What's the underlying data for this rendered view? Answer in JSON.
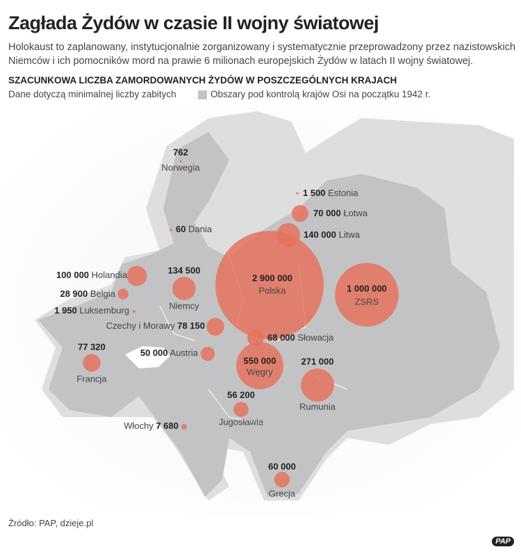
{
  "header": {
    "title": "Zagłada Żydów w czasie II wojny światowej",
    "subtitle": "Holokaust to zaplanowany, instytucjonalnie zorganizowany i systematycznie przeprowadzony przez nazistowskich Niemców i ich pomocników mord na prawie 6 milionach europejskich Żydów w latach II wojny światowej."
  },
  "legend": {
    "heading": "SZACUNKOWA LICZBA ZAMORDOWANYCH ŻYDÓW W POSZCZEGÓLNYCH KRAJACH",
    "note": "Dane dotyczą minimalnej liczby zabitych",
    "area_label": "Obszary pod kontrolą krajów Osi na początku 1942 r."
  },
  "countries": [
    {
      "name": "Norwegia",
      "deaths": 762,
      "deaths_label": "762"
    },
    {
      "name": "Estonia",
      "deaths": 1500,
      "deaths_label": "1 500"
    },
    {
      "name": "Łotwa",
      "deaths": 70000,
      "deaths_label": "70 000"
    },
    {
      "name": "Litwa",
      "deaths": 140000,
      "deaths_label": "140 000"
    },
    {
      "name": "Dania",
      "deaths": 60,
      "deaths_label": "60"
    },
    {
      "name": "Polska",
      "deaths": 2900000,
      "deaths_label": "2 900 000"
    },
    {
      "name": "ZSRS",
      "deaths": 1000000,
      "deaths_label": "1 000 000"
    },
    {
      "name": "Holandia",
      "deaths": 100000,
      "deaths_label": "100 000"
    },
    {
      "name": "Belgia",
      "deaths": 28900,
      "deaths_label": "28 900"
    },
    {
      "name": "Luksemburg",
      "deaths": 1950,
      "deaths_label": "1 950"
    },
    {
      "name": "Niemcy",
      "deaths": 134500,
      "deaths_label": "134 500"
    },
    {
      "name": "Czechy i Morawy",
      "deaths": 78150,
      "deaths_label": "78 150"
    },
    {
      "name": "Słowacja",
      "deaths": 68000,
      "deaths_label": "68 000"
    },
    {
      "name": "Austria",
      "deaths": 50000,
      "deaths_label": "50 000"
    },
    {
      "name": "Węgry",
      "deaths": 550000,
      "deaths_label": "550 000"
    },
    {
      "name": "Rumunia",
      "deaths": 271000,
      "deaths_label": "271 000"
    },
    {
      "name": "Francja",
      "deaths": 77320,
      "deaths_label": "77 320"
    },
    {
      "name": "Jugosławia",
      "deaths": 56200,
      "deaths_label": "56 200"
    },
    {
      "name": "Włochy",
      "deaths": 7680,
      "deaths_label": "7 680"
    },
    {
      "name": "Grecja",
      "deaths": 60000,
      "deaths_label": "60 000"
    }
  ],
  "source": "Źródło: PAP, dzieje.pl",
  "logo": "PAP"
}
